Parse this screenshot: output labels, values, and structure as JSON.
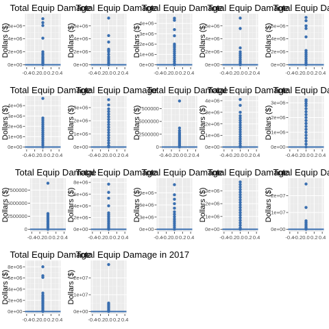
{
  "chart_data": [
    {
      "type": "scatter",
      "title": "Total Equip Damage",
      "ylabel": "Dollars ($)",
      "ylim": [
        0,
        7500000
      ],
      "yticks": [
        0,
        2000000,
        4000000,
        6000000
      ],
      "ytick_labels": [
        "0e+00",
        "2e+06",
        "4e+06",
        "6e+06"
      ],
      "xlim": [
        -0.4,
        0.4
      ],
      "xticks": [
        -0.4,
        -0.2,
        0.0,
        0.2,
        0.4
      ],
      "xtick_labels": [
        "-0.4",
        "-0.2",
        "0.0",
        "0.2",
        "0.4"
      ],
      "x": 0.0,
      "values": [
        7100000,
        6500000,
        6050000,
        4100000,
        2000000,
        1700000,
        1500000,
        1200000,
        1000000,
        800000,
        600000,
        400000,
        250000,
        100000,
        0
      ]
    },
    {
      "type": "scatter",
      "title": "Total Equip Damage",
      "ylabel": "Dollars ($)",
      "ylim": [
        0,
        7500000
      ],
      "yticks": [
        0,
        2000000,
        4000000,
        6000000
      ],
      "ytick_labels": [
        "0e+00",
        "2e+06",
        "4e+06",
        "6e+06"
      ],
      "xlim": [
        -0.4,
        0.4
      ],
      "xticks": [
        -0.4,
        -0.2,
        0.0,
        0.2,
        0.4
      ],
      "xtick_labels": [
        "-0.4",
        "-0.2",
        "0.0",
        "0.2",
        "0.4"
      ],
      "x": 0.0,
      "values": [
        7200000,
        4500000,
        3500000,
        2400000,
        2200000,
        2000000,
        1600000,
        1200000,
        900000,
        600000,
        300000,
        100000,
        0
      ]
    },
    {
      "type": "scatter",
      "title": "Total Equip Damage",
      "ylabel": "Dollars ($)",
      "ylim": [
        0,
        4700000
      ],
      "yticks": [
        0,
        1000000,
        2000000,
        3000000,
        4000000
      ],
      "ytick_labels": [
        "0e+00",
        "1e+06",
        "2e+06",
        "3e+06",
        "4e+06"
      ],
      "xlim": [
        -0.4,
        0.4
      ],
      "xticks": [
        -0.4,
        -0.2,
        0.0,
        0.2,
        0.4
      ],
      "xtick_labels": [
        "-0.4",
        "-0.2",
        "0.0",
        "0.2",
        "0.4"
      ],
      "x": 0.0,
      "values": [
        4500000,
        4300000,
        3400000,
        2800000,
        2000000,
        1850000,
        1700000,
        1500000,
        1300000,
        1100000,
        900000,
        700000,
        500000,
        300000,
        100000,
        0
      ]
    },
    {
      "type": "scatter",
      "title": "Total Equip Damage",
      "ylabel": "Dollars ($)",
      "ylim": [
        0,
        7500000
      ],
      "yticks": [
        0,
        2000000,
        4000000,
        6000000
      ],
      "ytick_labels": [
        "0e+00",
        "2e+06",
        "4e+06",
        "6e+06"
      ],
      "xlim": [
        -0.4,
        0.4
      ],
      "xticks": [
        -0.4,
        -0.2,
        0.0,
        0.2,
        0.4
      ],
      "xtick_labels": [
        "-0.4",
        "-0.2",
        "0.0",
        "0.2",
        "0.4"
      ],
      "x": 0.0,
      "values": [
        7200000,
        5600000,
        2600000,
        2000000,
        1700000,
        1400000,
        1100000,
        800000,
        500000,
        250000,
        0
      ]
    },
    {
      "type": "scatter",
      "title": "Total Equip Damage",
      "ylabel": "Dollars ($)",
      "ylim": [
        0,
        7500000
      ],
      "yticks": [
        0,
        2000000,
        4000000,
        6000000
      ],
      "ytick_labels": [
        "0e+00",
        "2e+06",
        "4e+06",
        "6e+06"
      ],
      "xlim": [
        -0.4,
        0.4
      ],
      "xticks": [
        -0.4,
        -0.2,
        0.0,
        0.2,
        0.4
      ],
      "xtick_labels": [
        "-0.4",
        "-0.2",
        "0.0",
        "0.2",
        "0.4"
      ],
      "x": 0.0,
      "values": [
        7300000,
        6800000,
        6000000,
        5600000,
        4300000,
        2200000,
        1900000,
        1600000,
        1300000,
        1000000,
        700000,
        400000,
        150000,
        0
      ]
    },
    {
      "type": "scatter",
      "title": "Total Equip Damage",
      "ylabel": "Dollars ($)",
      "ylim": [
        0,
        4700000
      ],
      "yticks": [
        0,
        1000000,
        2000000,
        3000000,
        4000000
      ],
      "ytick_labels": [
        "0e+00",
        "1e+06",
        "2e+06",
        "3e+06",
        "4e+06"
      ],
      "xlim": [
        -0.4,
        0.4
      ],
      "xticks": [
        -0.4,
        -0.2,
        0.0,
        0.2,
        0.4
      ],
      "xtick_labels": [
        "-0.4",
        "-0.2",
        "0.0",
        "0.2",
        "0.4"
      ],
      "x": 0.0,
      "values": [
        4700000,
        2800000,
        2600000,
        2400000,
        2200000,
        2000000,
        1800000,
        1600000,
        1400000,
        1200000,
        1000000,
        800000,
        600000,
        400000,
        200000,
        0
      ]
    },
    {
      "type": "scatter",
      "title": "Total Equip Damage",
      "ylabel": "Dollars ($)",
      "ylim": [
        0,
        3700000
      ],
      "yticks": [
        0,
        1000000,
        2000000,
        3000000
      ],
      "ytick_labels": [
        "0e+00",
        "1e+06",
        "2e+06",
        "3e+06"
      ],
      "xlim": [
        -0.4,
        0.4
      ],
      "xticks": [
        -0.4,
        -0.2,
        0.0,
        0.2,
        0.4
      ],
      "xtick_labels": [
        "-0.4",
        "-0.2",
        "0.0",
        "0.2",
        "0.4"
      ],
      "x": 0.0,
      "values": [
        3600000,
        3200000,
        2900000,
        2700000,
        2500000,
        2300000,
        2100000,
        1900000,
        1700000,
        1500000,
        1300000,
        1100000,
        900000,
        700000,
        500000,
        300000,
        100000,
        0
      ]
    },
    {
      "type": "scatter",
      "title": "Total Equip Damage",
      "ylabel": "Dollars ($)",
      "ylim": [
        0,
        9500000
      ],
      "yticks": [
        0,
        2500000,
        5000000,
        7500000
      ],
      "ytick_labels": [
        "0",
        "2500000",
        "5000000",
        "7500000"
      ],
      "xlim": [
        -0.4,
        0.4
      ],
      "xticks": [
        -0.4,
        -0.2,
        0.0,
        0.2,
        0.4
      ],
      "xtick_labels": [
        "-0.4",
        "-0.2",
        "0.0",
        "0.2",
        "0.4"
      ],
      "x": 0.0,
      "values": [
        9000000,
        3700000,
        3200000,
        2800000,
        2500000,
        2200000,
        1900000,
        1600000,
        1300000,
        1000000,
        700000,
        400000,
        150000,
        0
      ]
    },
    {
      "type": "scatter",
      "title": "Total Equip Damage",
      "ylabel": "Dollars ($)",
      "ylim": [
        0,
        4200000
      ],
      "yticks": [
        0,
        1000000,
        2000000,
        3000000,
        4000000
      ],
      "ytick_labels": [
        "0e+00",
        "1e+06",
        "2e+06",
        "3e+06",
        "4e+06"
      ],
      "xlim": [
        -0.4,
        0.4
      ],
      "xticks": [
        -0.4,
        -0.2,
        0.0,
        0.2,
        0.4
      ],
      "xtick_labels": [
        "-0.4",
        "-0.2",
        "0.0",
        "0.2",
        "0.4"
      ],
      "x": 0.0,
      "values": [
        4100000,
        3600000,
        3000000,
        2700000,
        2500000,
        2300000,
        2100000,
        1900000,
        1700000,
        1500000,
        1300000,
        1100000,
        900000,
        700000,
        500000,
        300000,
        100000,
        0
      ]
    },
    {
      "type": "scatter",
      "title": "Total Equip Damage",
      "ylabel": "Dollars ($)",
      "ylim": [
        0,
        3300000
      ],
      "yticks": [
        0,
        1000000,
        2000000,
        3000000
      ],
      "ytick_labels": [
        "0e+00",
        "1e+06",
        "2e+06",
        "3e+06"
      ],
      "xlim": [
        -0.4,
        0.4
      ],
      "xticks": [
        -0.4,
        -0.2,
        0.0,
        0.2,
        0.4
      ],
      "xtick_labels": [
        "-0.4",
        "-0.2",
        "0.0",
        "0.2",
        "0.4"
      ],
      "x": 0.0,
      "values": [
        3200000,
        3100000,
        2950000,
        2800000,
        2600000,
        2400000,
        2200000,
        2000000,
        1800000,
        1600000,
        1400000,
        1200000,
        1000000,
        800000,
        600000,
        400000,
        200000,
        0
      ]
    },
    {
      "type": "scatter",
      "title": "Total Equip Damage",
      "ylabel": "Dollars ($)",
      "ylim": [
        0,
        9300000
      ],
      "yticks": [
        0,
        2500000,
        5000000,
        7500000
      ],
      "ytick_labels": [
        "0",
        "2500000",
        "5000000",
        "7500000"
      ],
      "xlim": [
        -0.4,
        0.4
      ],
      "xticks": [
        -0.4,
        -0.2,
        0.0,
        0.2,
        0.4
      ],
      "xtick_labels": [
        "-0.4",
        "-0.2",
        "0.0",
        "0.2",
        "0.4"
      ],
      "x": 0.0,
      "values": [
        8800000,
        3000000,
        2700000,
        2400000,
        2100000,
        1800000,
        1500000,
        1200000,
        900000,
        600000,
        300000,
        0
      ]
    },
    {
      "type": "scatter",
      "title": "Total Equip Damage",
      "ylabel": "Dollars ($)",
      "ylim": [
        0,
        8300000
      ],
      "yticks": [
        0,
        2000000,
        4000000,
        6000000,
        8000000
      ],
      "ytick_labels": [
        "0e+00",
        "2e+06",
        "4e+06",
        "6e+06",
        "8e+06"
      ],
      "xlim": [
        -0.4,
        0.4
      ],
      "xticks": [
        -0.4,
        -0.2,
        0.0,
        0.2,
        0.4
      ],
      "xtick_labels": [
        "-0.4",
        "-0.2",
        "0.0",
        "0.2",
        "0.4"
      ],
      "x": 0.0,
      "values": [
        7700000,
        6300000,
        5300000,
        4000000,
        2800000,
        2500000,
        2200000,
        1900000,
        1600000,
        1300000,
        1000000,
        700000,
        400000,
        150000,
        0
      ]
    },
    {
      "type": "scatter",
      "title": "Total Equip Damage",
      "ylabel": "Dollars ($)",
      "ylim": [
        0,
        12000000
      ],
      "yticks": [
        0,
        3000000,
        6000000,
        9000000
      ],
      "ytick_labels": [
        "0e+00",
        "3e+06",
        "6e+06",
        "9e+06"
      ],
      "xlim": [
        -0.4,
        0.4
      ],
      "xticks": [
        -0.4,
        -0.2,
        0.0,
        0.2,
        0.4
      ],
      "xtick_labels": [
        "-0.4",
        "-0.2",
        "0.0",
        "0.2",
        "0.4"
      ],
      "x": 0.0,
      "values": [
        11000000,
        8500000,
        7400000,
        6300000,
        5200000,
        4300000,
        3700000,
        3100000,
        2500000,
        2000000,
        1500000,
        1000000,
        500000,
        0
      ]
    },
    {
      "type": "scatter",
      "title": "Total Equip Damage",
      "ylabel": "Dollars ($)",
      "ylim": [
        0,
        3800000
      ],
      "yticks": [
        0,
        1000000,
        2000000,
        3000000
      ],
      "ytick_labels": [
        "0e+00",
        "1e+06",
        "2e+06",
        "3e+06"
      ],
      "xlim": [
        -0.4,
        0.4
      ],
      "xticks": [
        -0.4,
        -0.2,
        0.0,
        0.2,
        0.4
      ],
      "xtick_labels": [
        "-0.4",
        "-0.2",
        "0.0",
        "0.2",
        "0.4"
      ],
      "x": 0.0,
      "values": [
        3700000,
        3500000,
        3300000,
        3100000,
        2900000,
        2700000,
        2500000,
        2300000,
        2100000,
        1900000,
        1700000,
        1500000,
        1300000,
        1100000,
        900000,
        700000,
        500000,
        300000,
        100000,
        0
      ]
    },
    {
      "type": "scatter",
      "title": "Total Equip Damage",
      "ylabel": "Dollars ($)",
      "ylim": [
        0,
        29000000
      ],
      "yticks": [
        0,
        10000000,
        20000000
      ],
      "ytick_labels": [
        "0e+00",
        "1e+07",
        "2e+07"
      ],
      "xlim": [
        -0.4,
        0.4
      ],
      "xticks": [
        -0.4,
        -0.2,
        0.0,
        0.2,
        0.4
      ],
      "xtick_labels": [
        "-0.4",
        "-0.2",
        "0.0",
        "0.2",
        "0.4"
      ],
      "x": 0.0,
      "values": [
        27000000,
        13000000,
        5000000,
        4000000,
        3000000,
        2000000,
        1000000,
        500000,
        0
      ]
    },
    {
      "type": "scatter",
      "title": "Total Equip Damage",
      "ylabel": "Dollars ($)",
      "ylim": [
        0,
        8700000
      ],
      "yticks": [
        0,
        2000000,
        4000000,
        6000000,
        8000000
      ],
      "ytick_labels": [
        "0e+00",
        "2e+06",
        "4e+06",
        "6e+06",
        "8e+06"
      ],
      "xlim": [
        -0.4,
        0.4
      ],
      "xticks": [
        -0.4,
        -0.2,
        0.0,
        0.2,
        0.4
      ],
      "xtick_labels": [
        "-0.4",
        "-0.2",
        "0.0",
        "0.2",
        "0.4"
      ],
      "x": 0.0,
      "values": [
        8000000,
        6400000,
        6100000,
        3300000,
        2900000,
        2600000,
        2300000,
        2000000,
        1700000,
        1400000,
        1100000,
        800000,
        500000,
        200000,
        0
      ]
    },
    {
      "type": "scatter",
      "title": "Total Equip Damage in 2017",
      "ylabel": "Dollars ($)",
      "ylim": [
        0,
        29000000
      ],
      "yticks": [
        0,
        10000000,
        20000000
      ],
      "ytick_labels": [
        "0e+00",
        "1e+07",
        "2e+07"
      ],
      "xlim": [
        -0.4,
        0.4
      ],
      "xticks": [
        -0.4,
        -0.2,
        0.0,
        0.2,
        0.4
      ],
      "xtick_labels": [
        "-0.4",
        "-0.2",
        "0.0",
        "0.2",
        "0.4"
      ],
      "x": 0.0,
      "values": [
        28000000,
        5000000,
        4200000,
        3400000,
        2600000,
        1800000,
        1000000,
        400000,
        0
      ]
    }
  ]
}
